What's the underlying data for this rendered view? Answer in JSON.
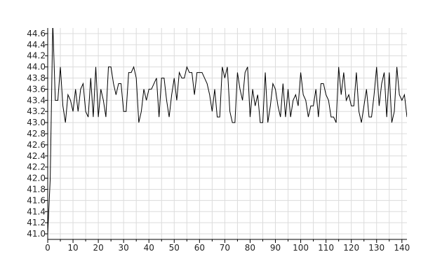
{
  "chart_data": {
    "type": "line",
    "title": "",
    "xlabel": "",
    "ylabel": "",
    "xlim": [
      0,
      142
    ],
    "ylim": [
      40.9,
      44.7
    ],
    "grid": true,
    "legend": "none",
    "x_ticks": [
      0,
      10,
      20,
      30,
      40,
      50,
      60,
      70,
      80,
      90,
      100,
      110,
      120,
      130,
      140
    ],
    "x_tick_labels": [
      "0",
      "10",
      "20",
      "30",
      "40",
      "50",
      "60",
      "70",
      "80",
      "90",
      "100",
      "110",
      "120",
      "130",
      "140"
    ],
    "y_ticks": [
      41.0,
      41.2,
      41.4,
      41.6,
      41.8,
      42.0,
      42.2,
      42.4,
      42.6,
      42.8,
      43.0,
      43.2,
      43.4,
      43.6,
      43.8,
      44.0,
      44.2,
      44.4,
      44.6
    ],
    "y_tick_labels": [
      "41.0",
      "41.2",
      "41.4",
      "41.6",
      "41.8",
      "42.0",
      "42.2",
      "42.4",
      "42.6",
      "42.8",
      "43.0",
      "43.2",
      "43.4",
      "43.6",
      "43.8",
      "44.0",
      "44.2",
      "44.4",
      "44.6"
    ],
    "series": [
      {
        "color": "#000000",
        "y": [
          41.0,
          42.0,
          44.8,
          43.4,
          43.4,
          44.0,
          43.3,
          43.0,
          43.5,
          43.4,
          43.2,
          43.6,
          43.2,
          43.6,
          43.7,
          43.2,
          43.1,
          43.8,
          43.1,
          44.0,
          43.1,
          43.6,
          43.4,
          43.1,
          44.0,
          44.0,
          43.7,
          43.5,
          43.7,
          43.7,
          43.2,
          43.2,
          43.9,
          43.9,
          44.0,
          43.8,
          43.0,
          43.2,
          43.6,
          43.4,
          43.6,
          43.6,
          43.7,
          43.8,
          43.1,
          43.8,
          43.8,
          43.4,
          43.1,
          43.5,
          43.8,
          43.4,
          43.9,
          43.8,
          43.8,
          44.0,
          43.9,
          43.9,
          43.5,
          43.9,
          43.9,
          43.9,
          43.8,
          43.7,
          43.5,
          43.2,
          43.6,
          43.1,
          43.1,
          44.0,
          43.8,
          44.0,
          43.2,
          43.0,
          43.0,
          43.9,
          43.6,
          43.4,
          43.9,
          44.0,
          43.1,
          43.6,
          43.3,
          43.5,
          43.0,
          43.0,
          43.9,
          43.0,
          43.3,
          43.7,
          43.6,
          43.3,
          43.1,
          43.7,
          43.1,
          43.6,
          43.1,
          43.4,
          43.5,
          43.3,
          43.9,
          43.5,
          43.4,
          43.1,
          43.3,
          43.3,
          43.6,
          43.1,
          43.7,
          43.7,
          43.5,
          43.4,
          43.1,
          43.1,
          43.0,
          44.0,
          43.5,
          43.9,
          43.4,
          43.5,
          43.3,
          43.3,
          43.9,
          43.2,
          43.0,
          43.3,
          43.6,
          43.1,
          43.1,
          43.5,
          44.0,
          43.3,
          43.7,
          43.9,
          43.1,
          43.9,
          43.0,
          43.2,
          44.0,
          43.5,
          43.4,
          43.5,
          43.1
        ]
      }
    ]
  }
}
